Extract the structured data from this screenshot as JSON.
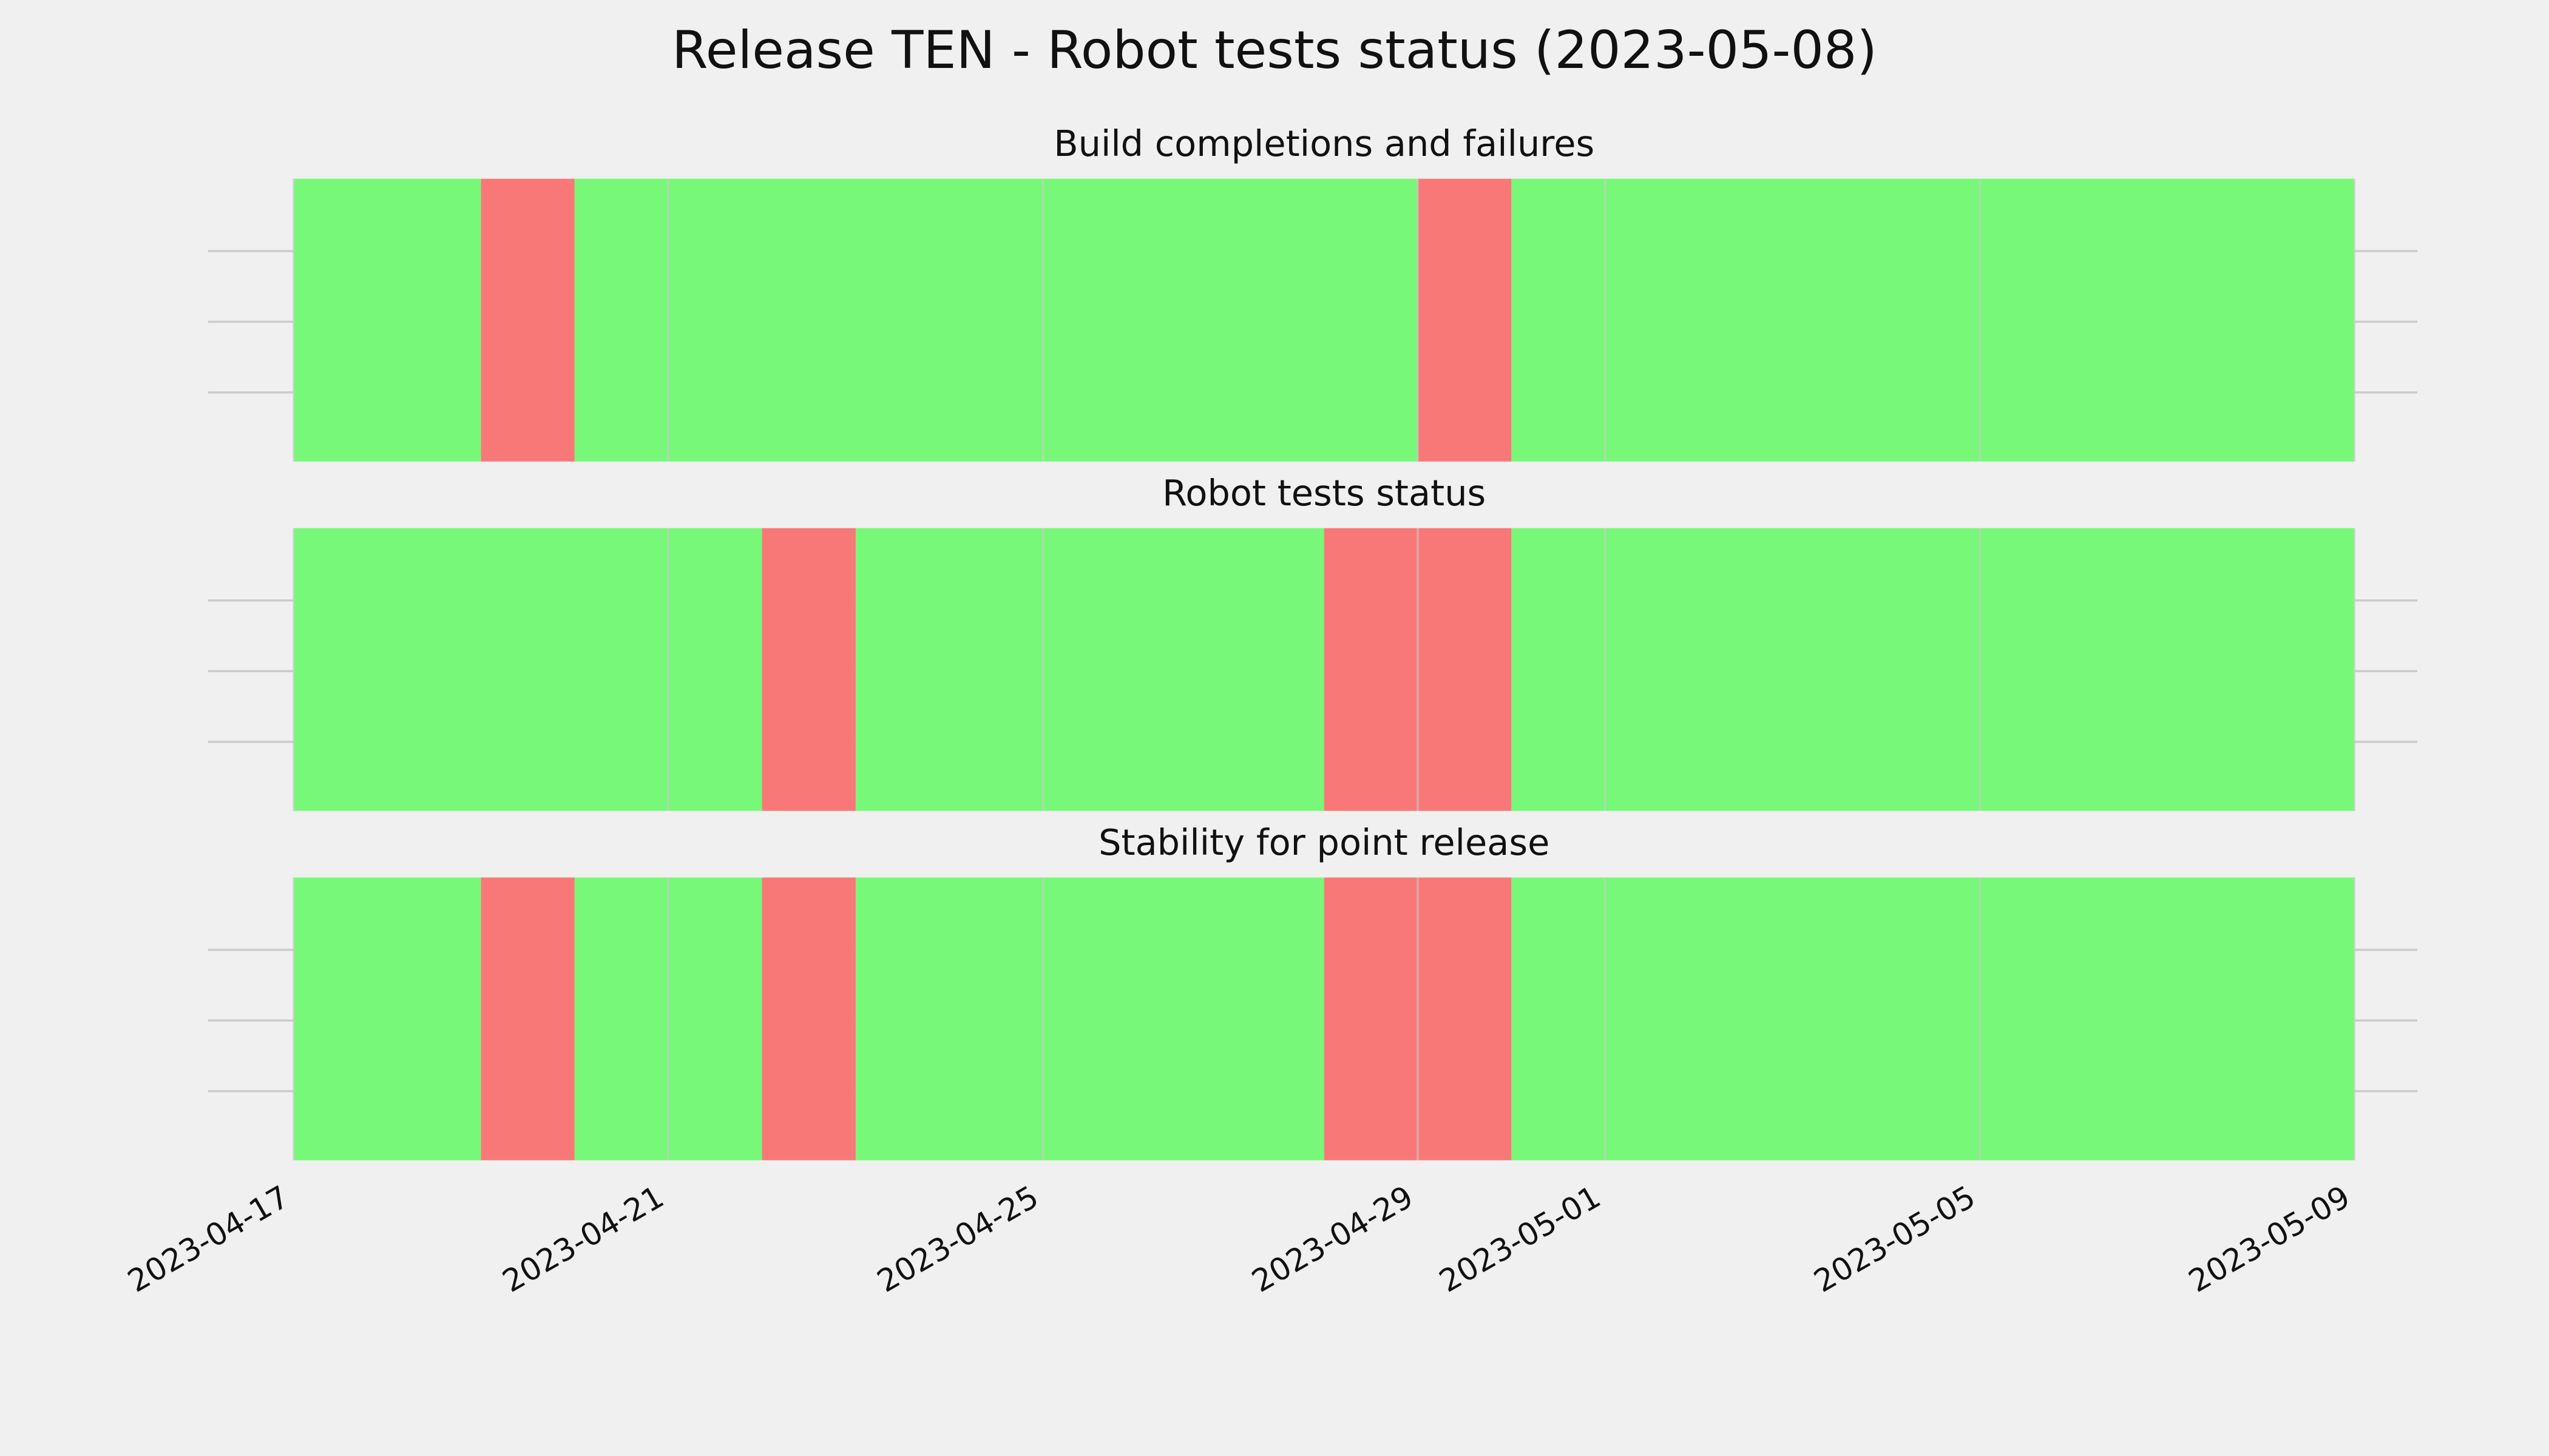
{
  "title": "Release TEN - Robot tests status (2023-05-08)",
  "chart_data": [
    {
      "type": "timeline",
      "title": "Build completions and failures",
      "xlim": [
        "2023-04-16",
        "2023-05-10"
      ],
      "xticks": [
        "2023-04-17",
        "2023-04-21",
        "2023-04-25",
        "2023-04-29",
        "2023-05-01",
        "2023-05-05",
        "2023-05-09"
      ],
      "grid": true,
      "spans": [
        {
          "start": "2023-04-17",
          "end": "2023-04-19",
          "color": "#78f878"
        },
        {
          "start": "2023-04-19",
          "end": "2023-04-20",
          "color": "#f87878"
        },
        {
          "start": "2023-04-20",
          "end": "2023-04-29",
          "color": "#78f878"
        },
        {
          "start": "2023-04-29",
          "end": "2023-04-30",
          "color": "#f87878"
        },
        {
          "start": "2023-04-30",
          "end": "2023-05-09",
          "color": "#78f878"
        }
      ]
    },
    {
      "type": "timeline",
      "title": "Robot tests status",
      "xlim": [
        "2023-04-16",
        "2023-05-10"
      ],
      "xticks": [
        "2023-04-17",
        "2023-04-21",
        "2023-04-25",
        "2023-04-29",
        "2023-05-01",
        "2023-05-05",
        "2023-05-09"
      ],
      "grid": true,
      "spans": [
        {
          "start": "2023-04-17",
          "end": "2023-04-22",
          "color": "#78f878"
        },
        {
          "start": "2023-04-22",
          "end": "2023-04-23",
          "color": "#f87878"
        },
        {
          "start": "2023-04-23",
          "end": "2023-04-28",
          "color": "#78f878"
        },
        {
          "start": "2023-04-28",
          "end": "2023-04-30",
          "color": "#f87878"
        },
        {
          "start": "2023-04-30",
          "end": "2023-05-09",
          "color": "#78f878"
        }
      ]
    },
    {
      "type": "timeline",
      "title": "Stability for point release",
      "xlim": [
        "2023-04-16",
        "2023-05-10"
      ],
      "xticks": [
        "2023-04-17",
        "2023-04-21",
        "2023-04-25",
        "2023-04-29",
        "2023-05-01",
        "2023-05-05",
        "2023-05-09"
      ],
      "grid": true,
      "spans": [
        {
          "start": "2023-04-17",
          "end": "2023-04-19",
          "color": "#78f878"
        },
        {
          "start": "2023-04-19",
          "end": "2023-04-20",
          "color": "#f87878"
        },
        {
          "start": "2023-04-20",
          "end": "2023-04-22",
          "color": "#78f878"
        },
        {
          "start": "2023-04-22",
          "end": "2023-04-23",
          "color": "#f87878"
        },
        {
          "start": "2023-04-23",
          "end": "2023-04-28",
          "color": "#78f878"
        },
        {
          "start": "2023-04-28",
          "end": "2023-04-30",
          "color": "#f87878"
        },
        {
          "start": "2023-04-30",
          "end": "2023-05-09",
          "color": "#78f878"
        }
      ]
    }
  ]
}
